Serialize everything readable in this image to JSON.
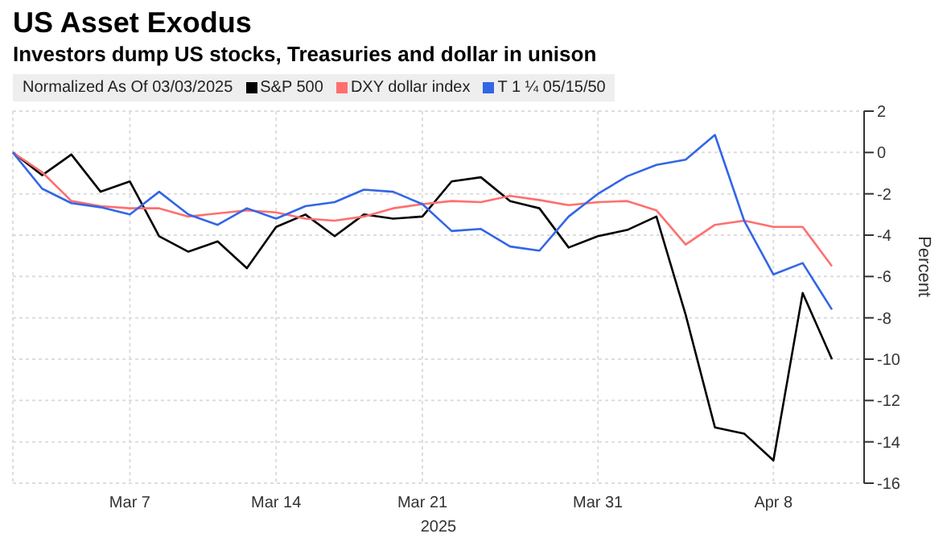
{
  "chart_data": {
    "type": "line",
    "title": "US Asset Exodus",
    "subtitle": "Investors dump US stocks, Treasuries and dollar in unison",
    "legend_title": "Normalized As Of 03/03/2025",
    "xlabel": "2025",
    "ylabel": "Percent",
    "categories": [
      null,
      null,
      null,
      null,
      "Mar 7",
      null,
      null,
      null,
      null,
      "Mar 14",
      null,
      null,
      null,
      null,
      "Mar 21",
      null,
      null,
      null,
      null,
      null,
      "Mar 31",
      null,
      null,
      null,
      null,
      null,
      "Apr 8",
      null,
      null
    ],
    "series": [
      {
        "name": "S&P 500",
        "color": "#000000",
        "values": [
          0,
          -1.1,
          -0.1,
          -1.9,
          -1.4,
          -4.05,
          -4.8,
          -4.3,
          -5.6,
          -3.6,
          -3.0,
          -4.05,
          -3.0,
          -3.2,
          -3.1,
          -1.4,
          -1.2,
          -2.35,
          -2.7,
          -4.6,
          -4.05,
          -3.75,
          -3.1,
          -7.85,
          -13.3,
          -13.6,
          -14.9,
          -6.8,
          -10.0
        ]
      },
      {
        "name": "DXY dollar index",
        "color": "#ff6f6f",
        "values": [
          0,
          -0.95,
          -2.35,
          -2.6,
          -2.7,
          -2.7,
          -3.1,
          -2.95,
          -2.8,
          -2.9,
          -3.2,
          -3.3,
          -3.1,
          -2.7,
          -2.5,
          -2.35,
          -2.4,
          -2.1,
          -2.3,
          -2.55,
          -2.4,
          -2.35,
          -2.8,
          -4.45,
          -3.5,
          -3.3,
          -3.6,
          -3.6,
          -5.5
        ]
      },
      {
        "name": "T 1 ¼ 05/15/50",
        "color": "#3366e6",
        "values": [
          0,
          -1.75,
          -2.45,
          -2.65,
          -3.0,
          -1.9,
          -3.0,
          -3.5,
          -2.7,
          -3.2,
          -2.6,
          -2.4,
          -1.8,
          -1.9,
          -2.5,
          -3.8,
          -3.7,
          -4.55,
          -4.75,
          -3.1,
          -2.0,
          -1.15,
          -0.6,
          -0.35,
          0.85,
          -3.3,
          -5.9,
          -5.35,
          -7.6
        ]
      }
    ],
    "ylim": [
      -16,
      2
    ],
    "yticks": [
      -16,
      -14,
      -12,
      -10,
      -8,
      -6,
      -4,
      -2,
      0,
      2
    ],
    "grid": true,
    "legend": "top left",
    "marker": "none",
    "line_style": "solid"
  }
}
